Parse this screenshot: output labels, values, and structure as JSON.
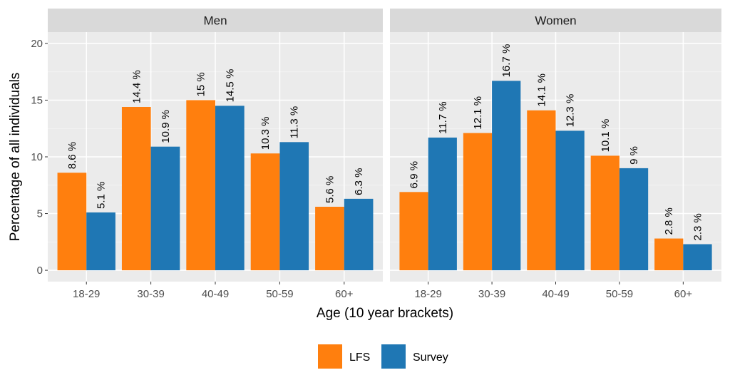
{
  "chart_data": {
    "type": "bar",
    "layout": "faceted-grouped",
    "xlabel": "Age (10 year brackets)",
    "ylabel": "Percentage of all individuals",
    "ylim": [
      -1,
      21
    ],
    "yticks": [
      0,
      5,
      10,
      15,
      20
    ],
    "categories": [
      "18-29",
      "30-39",
      "40-49",
      "50-59",
      "60+"
    ],
    "panels": [
      {
        "title": "Men",
        "series": [
          {
            "name": "LFS",
            "values": [
              8.6,
              14.4,
              15.0,
              10.3,
              5.6
            ],
            "labels": [
              "8.6 %",
              "14.4 %",
              "15 %",
              "10.3 %",
              "5.6 %"
            ]
          },
          {
            "name": "Survey",
            "values": [
              5.1,
              10.9,
              14.5,
              11.3,
              6.3
            ],
            "labels": [
              "5.1 %",
              "10.9 %",
              "14.5 %",
              "11.3 %",
              "6.3 %"
            ]
          }
        ]
      },
      {
        "title": "Women",
        "series": [
          {
            "name": "LFS",
            "values": [
              6.9,
              12.1,
              14.1,
              10.1,
              2.8
            ],
            "labels": [
              "6.9 %",
              "12.1 %",
              "14.1 %",
              "10.1 %",
              "2.8 %"
            ]
          },
          {
            "name": "Survey",
            "values": [
              11.7,
              16.7,
              12.3,
              9.0,
              2.3
            ],
            "labels": [
              "11.7 %",
              "16.7 %",
              "12.3 %",
              "9 %",
              "2.3 %"
            ]
          }
        ]
      }
    ],
    "legend": {
      "position": "bottom",
      "items": [
        {
          "name": "LFS",
          "color": "#ff7f0e"
        },
        {
          "name": "Survey",
          "color": "#1f77b4"
        }
      ]
    },
    "colors": {
      "panel_background": "#ebebeb",
      "strip_background": "#d9d9d9",
      "grid_major": "#ffffff",
      "grid_minor": "#f5f5f5"
    }
  }
}
